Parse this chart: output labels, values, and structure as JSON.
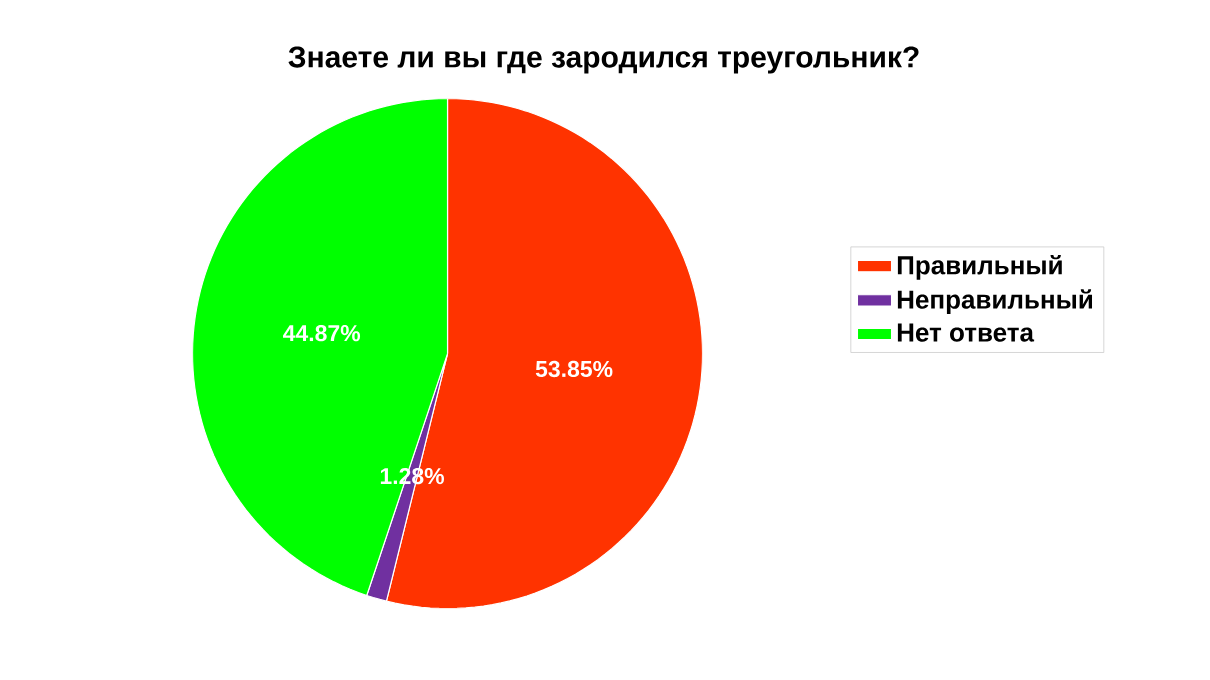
{
  "chart_data": {
    "type": "pie",
    "title": "Знаете ли вы где зародился треугольник?",
    "categories": [
      "Правильный",
      "Неправильный",
      "Нет ответа"
    ],
    "values": [
      53.85,
      1.28,
      44.87
    ],
    "value_labels": [
      "53.85%",
      "1.28%",
      "44.87%"
    ],
    "colors": [
      "#ff3300",
      "#7030a0",
      "#00ff00"
    ],
    "legend": "right"
  }
}
